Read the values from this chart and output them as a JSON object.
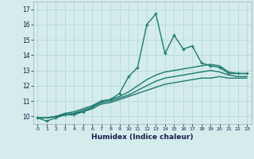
{
  "xlabel": "Humidex (Indice chaleur)",
  "background_color": "#d4ecec",
  "grid_color": "#b8d8d8",
  "line_color": "#1e7a6e",
  "xlim": [
    -0.5,
    23.5
  ],
  "ylim": [
    9.5,
    17.5
  ],
  "yticks": [
    10,
    11,
    12,
    13,
    14,
    15,
    16,
    17
  ],
  "xticks": [
    0,
    1,
    2,
    3,
    4,
    5,
    6,
    7,
    8,
    9,
    10,
    11,
    12,
    13,
    14,
    15,
    16,
    17,
    18,
    19,
    20,
    21,
    22,
    23
  ],
  "series": [
    [
      9.9,
      9.7,
      9.9,
      10.1,
      10.1,
      10.3,
      10.6,
      11.0,
      11.1,
      11.5,
      12.6,
      13.2,
      16.0,
      16.7,
      14.1,
      15.3,
      14.4,
      14.6,
      13.5,
      13.3,
      13.2,
      12.8,
      12.8,
      12.8
    ],
    [
      9.9,
      9.9,
      10.0,
      10.2,
      10.3,
      10.5,
      10.7,
      11.0,
      11.1,
      11.3,
      11.6,
      12.0,
      12.4,
      12.7,
      12.9,
      13.0,
      13.1,
      13.2,
      13.3,
      13.4,
      13.3,
      12.9,
      12.8,
      12.8
    ],
    [
      9.9,
      9.9,
      10.0,
      10.1,
      10.2,
      10.4,
      10.6,
      10.9,
      11.0,
      11.2,
      11.4,
      11.7,
      12.0,
      12.3,
      12.5,
      12.6,
      12.7,
      12.8,
      12.9,
      13.0,
      12.9,
      12.7,
      12.6,
      12.6
    ],
    [
      9.9,
      9.9,
      10.0,
      10.1,
      10.2,
      10.3,
      10.5,
      10.8,
      10.9,
      11.1,
      11.3,
      11.5,
      11.7,
      11.9,
      12.1,
      12.2,
      12.3,
      12.4,
      12.5,
      12.5,
      12.6,
      12.5,
      12.5,
      12.5
    ]
  ]
}
